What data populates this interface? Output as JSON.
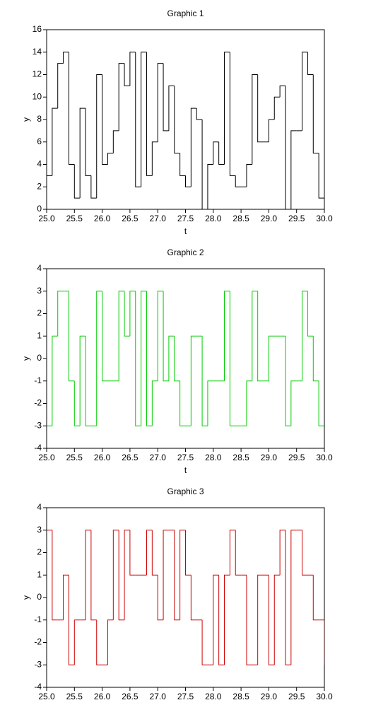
{
  "chart_data": [
    {
      "type": "step",
      "title": "Graphic 1",
      "xlabel": "t",
      "ylabel": "y",
      "color": "#000000",
      "x": [
        25.0,
        25.1,
        25.2,
        25.3,
        25.4,
        25.5,
        25.6,
        25.7,
        25.8,
        25.9,
        26.0,
        26.1,
        26.2,
        26.3,
        26.4,
        26.5,
        26.6,
        26.7,
        26.8,
        26.9,
        27.0,
        27.1,
        27.2,
        27.3,
        27.4,
        27.5,
        27.6,
        27.7,
        27.8,
        27.9,
        28.0,
        28.1,
        28.2,
        28.3,
        28.4,
        28.5,
        28.6,
        28.7,
        28.8,
        28.9,
        29.0,
        29.1,
        29.2,
        29.3,
        29.4,
        29.5,
        29.6,
        29.7,
        29.8,
        29.9,
        30.0
      ],
      "values": [
        3,
        9,
        13,
        14,
        4,
        1,
        9,
        3,
        1,
        12,
        4,
        5,
        7,
        13,
        11,
        14,
        2,
        14,
        3,
        6,
        13,
        7,
        11,
        5,
        3,
        2,
        9,
        8,
        0,
        4,
        6,
        4,
        14,
        3,
        2,
        2,
        4,
        12,
        6,
        6,
        8,
        10,
        11,
        0,
        7,
        7,
        14,
        12,
        5,
        1,
        0
      ],
      "xlim": [
        25,
        30
      ],
      "ylim": [
        0,
        16
      ],
      "xticks": [
        {
          "value": 25,
          "label": "25.0"
        },
        {
          "value": 25.5,
          "label": "25.5"
        },
        {
          "value": 26,
          "label": "26.0"
        },
        {
          "value": 26.5,
          "label": "26.5"
        },
        {
          "value": 27,
          "label": "27.0"
        },
        {
          "value": 27.5,
          "label": "27.5"
        },
        {
          "value": 28,
          "label": "28.0"
        },
        {
          "value": 28.5,
          "label": "28.5"
        },
        {
          "value": 29,
          "label": "29.0"
        },
        {
          "value": 29.5,
          "label": "29.5"
        },
        {
          "value": 30,
          "label": "30.0"
        }
      ],
      "yticks": [
        0,
        2,
        4,
        6,
        8,
        10,
        12,
        14,
        16
      ]
    },
    {
      "type": "step",
      "title": "Graphic 2",
      "xlabel": "t",
      "ylabel": "y",
      "color": "#00cc00",
      "x": [
        25.0,
        25.1,
        25.2,
        25.3,
        25.4,
        25.5,
        25.6,
        25.7,
        25.8,
        25.9,
        26.0,
        26.1,
        26.2,
        26.3,
        26.4,
        26.5,
        26.6,
        26.7,
        26.8,
        26.9,
        27.0,
        27.1,
        27.2,
        27.3,
        27.4,
        27.5,
        27.6,
        27.7,
        27.8,
        27.9,
        28.0,
        28.1,
        28.2,
        28.3,
        28.4,
        28.5,
        28.6,
        28.7,
        28.8,
        28.9,
        29.0,
        29.1,
        29.2,
        29.3,
        29.4,
        29.5,
        29.6,
        29.7,
        29.8,
        29.9,
        30.0
      ],
      "values": [
        -3,
        1,
        3,
        3,
        -1,
        -3,
        1,
        -3,
        -3,
        3,
        -1,
        -1,
        -1,
        3,
        1,
        3,
        -3,
        3,
        -3,
        -1,
        3,
        -1,
        1,
        -1,
        -3,
        -3,
        1,
        1,
        -3,
        -1,
        -1,
        -1,
        3,
        -3,
        -3,
        -3,
        -1,
        3,
        -1,
        -1,
        1,
        1,
        1,
        -3,
        -1,
        -1,
        3,
        1,
        -1,
        -3,
        -3
      ],
      "xlim": [
        25,
        30
      ],
      "ylim": [
        -4,
        4
      ],
      "xticks": [
        {
          "value": 25,
          "label": "25.0"
        },
        {
          "value": 25.5,
          "label": "25.5"
        },
        {
          "value": 26,
          "label": "26.0"
        },
        {
          "value": 26.5,
          "label": "26.5"
        },
        {
          "value": 27,
          "label": "27.0"
        },
        {
          "value": 27.5,
          "label": "27.5"
        },
        {
          "value": 28,
          "label": "28.0"
        },
        {
          "value": 28.5,
          "label": "28.5"
        },
        {
          "value": 29,
          "label": "29.0"
        },
        {
          "value": 29.5,
          "label": "29.5"
        },
        {
          "value": 30,
          "label": "30.0"
        }
      ],
      "yticks": [
        -4,
        -3,
        -2,
        -1,
        0,
        1,
        2,
        3,
        4
      ]
    },
    {
      "type": "step",
      "title": "Graphic 3",
      "ylabel": "y",
      "color": "#cc0000",
      "x": [
        25.0,
        25.1,
        25.2,
        25.3,
        25.4,
        25.5,
        25.6,
        25.7,
        25.8,
        25.9,
        26.0,
        26.1,
        26.2,
        26.3,
        26.4,
        26.5,
        26.6,
        26.7,
        26.8,
        26.9,
        27.0,
        27.1,
        27.2,
        27.3,
        27.4,
        27.5,
        27.6,
        27.7,
        27.8,
        27.9,
        28.0,
        28.1,
        28.2,
        28.3,
        28.4,
        28.5,
        28.6,
        28.7,
        28.8,
        28.9,
        29.0,
        29.1,
        29.2,
        29.3,
        29.4,
        29.5,
        29.6,
        29.7,
        29.8,
        29.9,
        30.0
      ],
      "values": [
        3,
        -1,
        -1,
        1,
        -3,
        -1,
        -1,
        3,
        -1,
        -3,
        -3,
        -1,
        3,
        -1,
        3,
        1,
        1,
        1,
        3,
        1,
        -1,
        3,
        3,
        -1,
        3,
        1,
        -1,
        -1,
        -3,
        -3,
        1,
        -3,
        1,
        3,
        1,
        1,
        -3,
        -3,
        1,
        1,
        -3,
        1,
        3,
        -3,
        3,
        3,
        1,
        1,
        -1,
        -1,
        -3
      ],
      "xlim": [
        25,
        30
      ],
      "ylim": [
        -4,
        4
      ],
      "xticks": [
        {
          "value": 25,
          "label": "25.0"
        },
        {
          "value": 25.5,
          "label": "25.5"
        },
        {
          "value": 26,
          "label": "26.0"
        },
        {
          "value": 26.5,
          "label": "26.5"
        },
        {
          "value": 27,
          "label": "27.0"
        },
        {
          "value": 27.5,
          "label": "27.5"
        },
        {
          "value": 28,
          "label": "28.0"
        },
        {
          "value": 28.5,
          "label": "28.5"
        },
        {
          "value": 29,
          "label": "29.0"
        },
        {
          "value": 29.5,
          "label": "29.5"
        },
        {
          "value": 30,
          "label": "30.0"
        }
      ],
      "yticks": [
        -4,
        -3,
        -2,
        -1,
        0,
        1,
        2,
        3,
        4
      ]
    }
  ]
}
